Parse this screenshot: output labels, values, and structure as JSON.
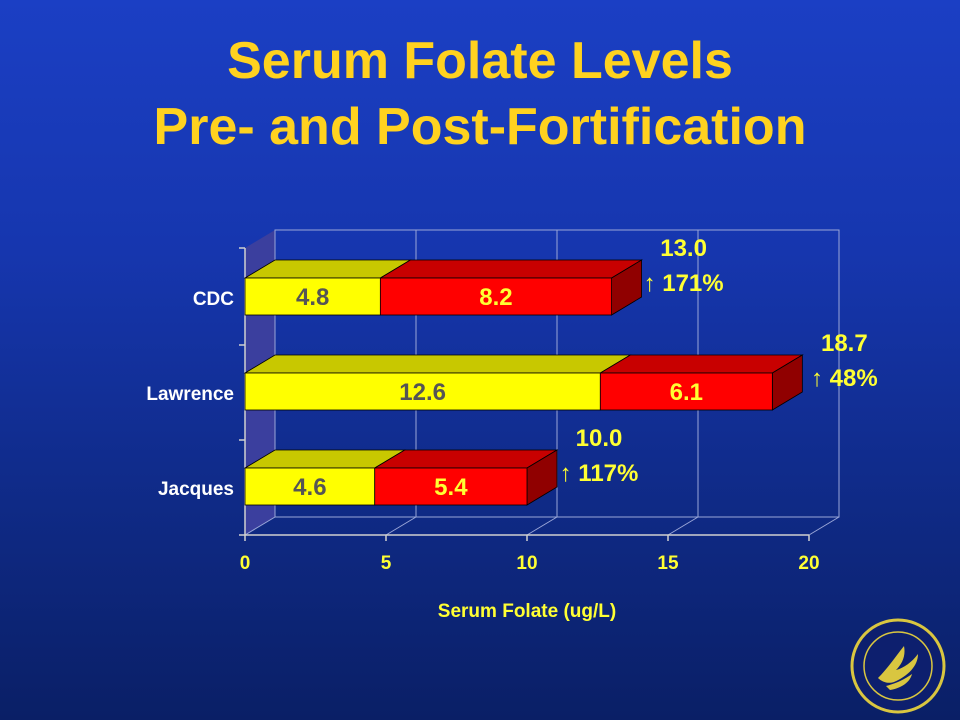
{
  "title_lines": [
    "Serum Folate Levels",
    "Pre- and Post-Fortification"
  ],
  "colors": {
    "pre": "#ffff00",
    "pre_top": "#c8c800",
    "post": "#ff0000",
    "post_top": "#c80000",
    "post_side": "#900000",
    "text_yellow": "#ffff33",
    "pre_label": "#555555",
    "post_label": "#ffff33"
  },
  "chart_data": {
    "type": "bar",
    "orientation": "horizontal",
    "stacked": true,
    "three_d": true,
    "categories": [
      "CDC",
      "Lawrence",
      "Jacques"
    ],
    "series": [
      {
        "key": "pre",
        "values": [
          4.8,
          12.6,
          4.6
        ],
        "labels": [
          "4.8",
          "12.6",
          "4.6"
        ]
      },
      {
        "key": "post",
        "values": [
          8.2,
          6.1,
          5.4
        ],
        "labels": [
          "8.2",
          "6.1",
          "5.4"
        ]
      }
    ],
    "totals": [
      {
        "value": "13.0",
        "change": "171%"
      },
      {
        "value": "18.7",
        "change": "48%"
      },
      {
        "value": "10.0",
        "change": "117%"
      }
    ],
    "change_symbol": "↑",
    "xlabel": "Serum Folate (ug/L)",
    "xlim": [
      0,
      20
    ],
    "xticks": [
      "0",
      "5",
      "10",
      "15",
      "20"
    ],
    "grid": true
  }
}
